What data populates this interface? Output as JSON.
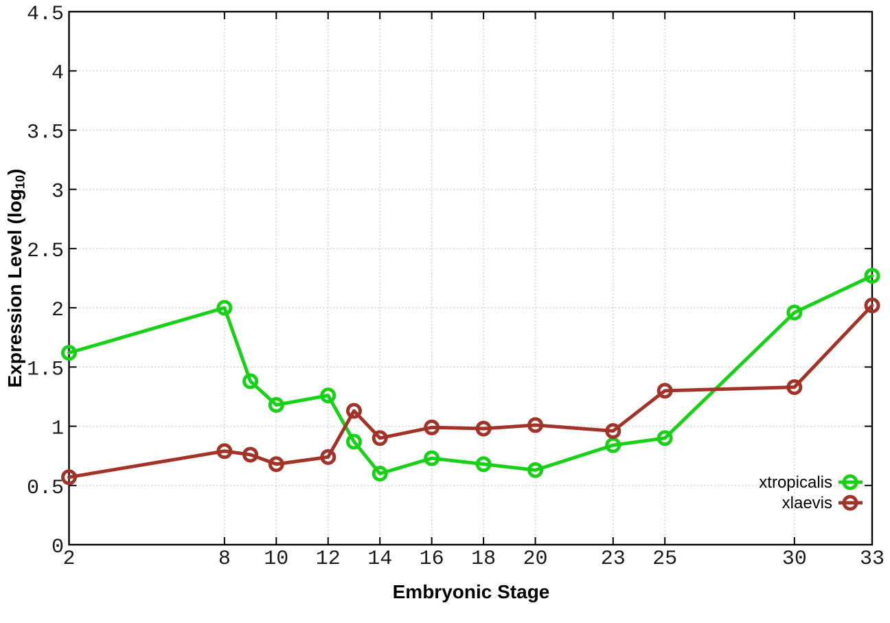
{
  "chart_data": {
    "type": "line",
    "title": "",
    "xlabel": "Embryonic Stage",
    "ylabel": {
      "main": "Expression Level (log",
      "sub": "10",
      "end": ")"
    },
    "xlim": [
      2,
      33
    ],
    "ylim": [
      0,
      4.5
    ],
    "xticks": [
      2,
      8,
      10,
      12,
      14,
      16,
      18,
      20,
      23,
      25,
      30,
      33
    ],
    "yticks": [
      0,
      0.5,
      1,
      1.5,
      2,
      2.5,
      3,
      3.5,
      4,
      4.5
    ],
    "grid": true,
    "x": [
      2,
      8,
      9,
      10,
      12,
      13,
      14,
      16,
      18,
      20,
      23,
      25,
      30,
      33
    ],
    "series": [
      {
        "name": "xtropicalis",
        "color": "#17d117",
        "values": [
          1.62,
          2.0,
          1.38,
          1.18,
          1.26,
          0.87,
          0.6,
          0.73,
          0.68,
          0.63,
          0.84,
          0.9,
          1.96,
          2.27
        ]
      },
      {
        "name": "xlaevis",
        "color": "#a23328",
        "values": [
          0.57,
          0.79,
          0.76,
          0.68,
          0.74,
          1.13,
          0.9,
          0.99,
          0.98,
          1.01,
          0.96,
          1.3,
          1.33,
          2.02
        ]
      }
    ],
    "legend": {
      "position": "inside-bottom-right",
      "entries": [
        "xtropicalis",
        "xlaevis"
      ]
    },
    "colors": {
      "axis": "#000000",
      "grid": "#c4c4c4",
      "tick_label": "#1a1a1a",
      "background": "#ffffff"
    }
  }
}
